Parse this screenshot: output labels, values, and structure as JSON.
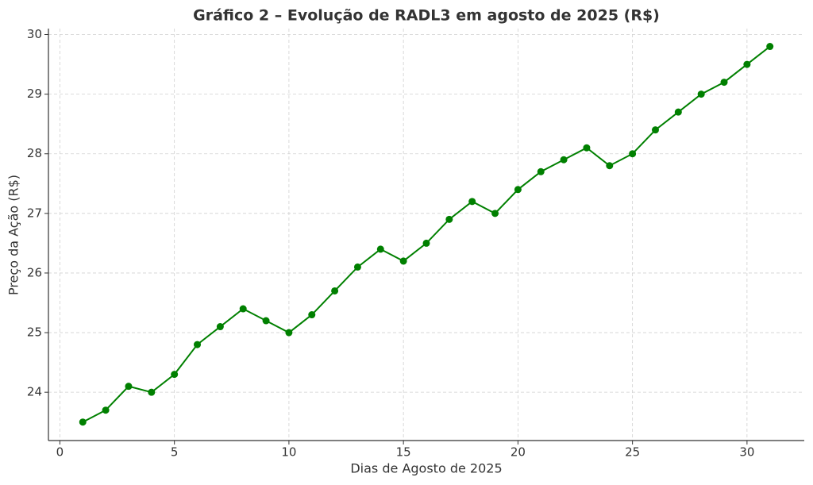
{
  "chart_data": {
    "type": "line",
    "title": "Gráfico 2 – Evolução de RADL3 em agosto de 2025 (R$)",
    "x_label": "Dias de Agosto de 2025",
    "y_label": "Preço da Ação (R$)",
    "x": [
      1,
      2,
      3,
      4,
      5,
      6,
      7,
      8,
      9,
      10,
      11,
      12,
      13,
      14,
      15,
      16,
      17,
      18,
      19,
      20,
      21,
      22,
      23,
      24,
      25,
      26,
      27,
      28,
      29,
      30,
      31
    ],
    "series": [
      {
        "name": "RADL3",
        "color": "green",
        "values": [
          23.5,
          23.7,
          24.1,
          24.0,
          24.3,
          24.8,
          25.1,
          25.4,
          25.2,
          25.0,
          25.3,
          25.7,
          26.1,
          26.4,
          26.2,
          26.5,
          26.9,
          27.2,
          27.0,
          27.4,
          27.7,
          27.9,
          28.1,
          27.8,
          28.0,
          28.4,
          28.7,
          29.0,
          29.2,
          29.5,
          29.8
        ]
      }
    ],
    "xlim": [
      -0.5,
      32.5
    ],
    "xticks": [
      0,
      5,
      10,
      15,
      20,
      25,
      30
    ],
    "ylim": [
      23.19,
      30.1
    ],
    "yticks": [
      24,
      25,
      26,
      27,
      28,
      29,
      30
    ],
    "grid": true
  }
}
